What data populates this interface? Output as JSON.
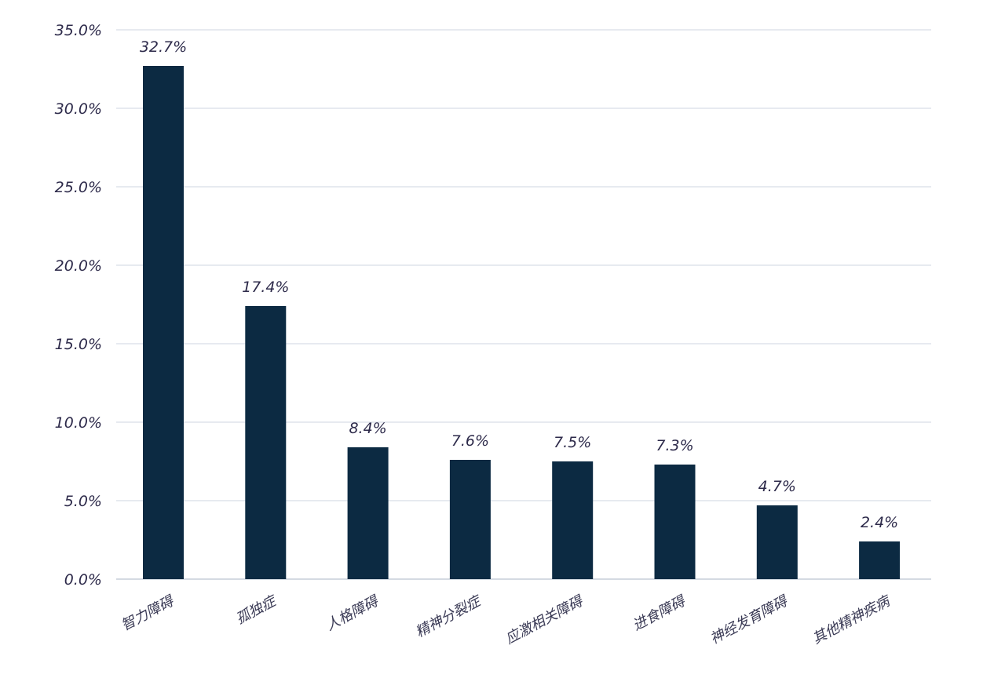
{
  "chart_data": {
    "type": "bar",
    "title": "",
    "xlabel": "",
    "ylabel": "",
    "categories": [
      "智力障碍",
      "孤独症",
      "人格障碍",
      "精神分裂症",
      "应激相关障碍",
      "进食障碍",
      "神经发育障碍",
      "其他精神疾病"
    ],
    "values": [
      32.7,
      17.4,
      8.4,
      7.6,
      7.5,
      7.3,
      4.7,
      2.4
    ],
    "value_labels": [
      "32.7%",
      "17.4%",
      "8.4%",
      "7.6%",
      "7.5%",
      "7.3%",
      "4.7%",
      "2.4%"
    ],
    "y_ticks": [
      0,
      5,
      10,
      15,
      20,
      25,
      30,
      35
    ],
    "y_tick_labels": [
      "0.0%",
      "5.0%",
      "10.0%",
      "15.0%",
      "20.0%",
      "25.0%",
      "30.0%",
      "35.0%"
    ],
    "ylim": [
      0,
      35
    ],
    "grid": true,
    "legend": "none",
    "colors": {
      "bar": "#0c2a42",
      "grid": "#cfd6e2",
      "text": "#2d2a4a"
    }
  }
}
